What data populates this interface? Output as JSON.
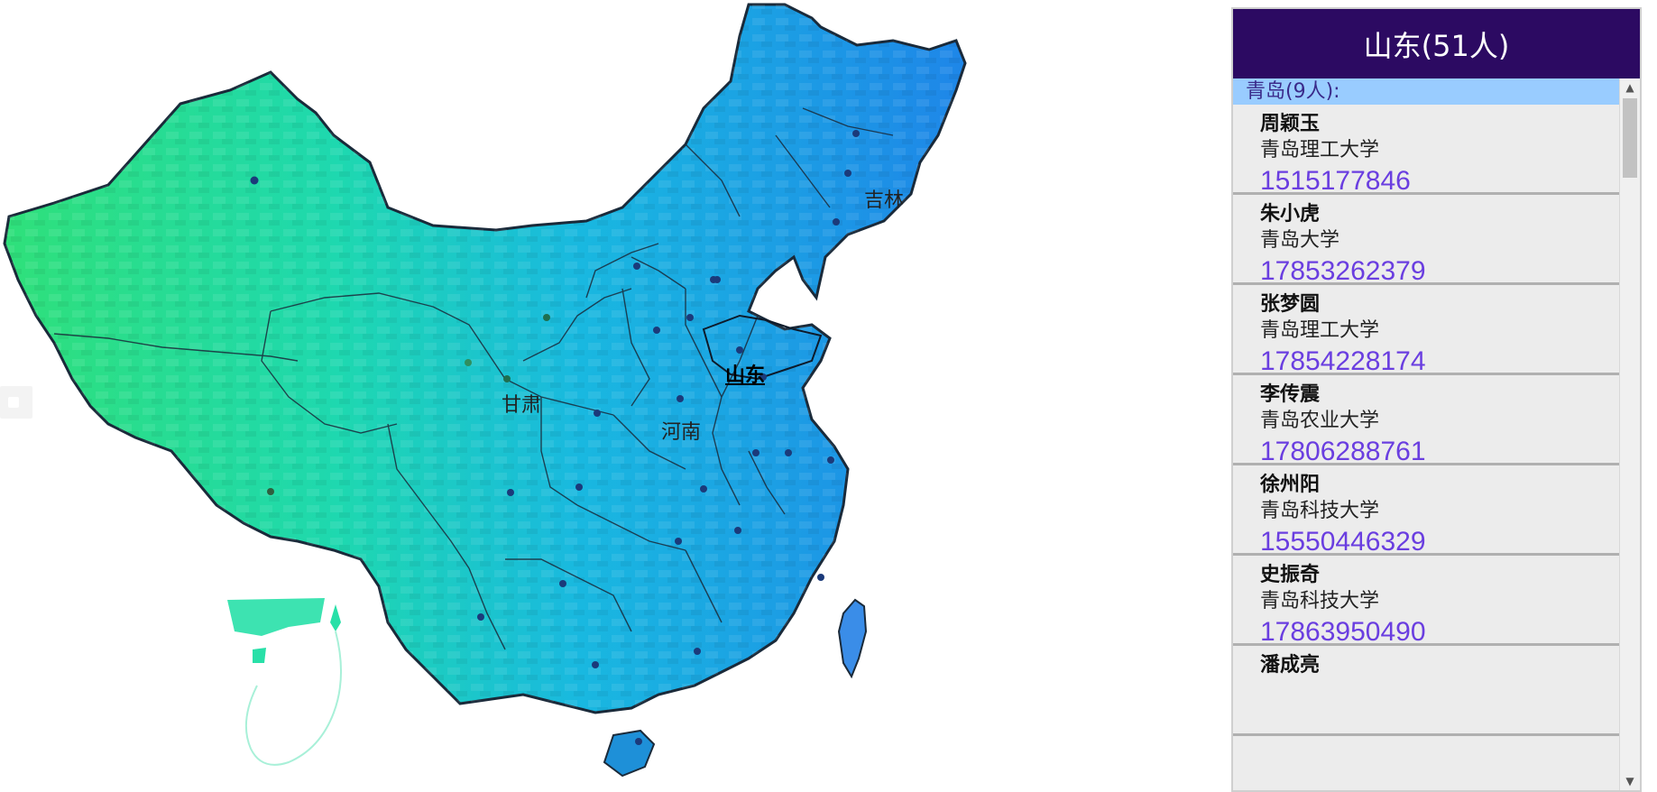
{
  "map": {
    "labels": {
      "jilin": "吉林",
      "shandong": "山东",
      "gansu": "甘肃",
      "henan": "河南"
    },
    "selected_province": "山东",
    "colors": {
      "west": "#2fd88a",
      "east": "#1e8fe0",
      "border": "#1a2a3a",
      "city_dot": "#1b3a7a"
    }
  },
  "panel": {
    "title": "山东(51人)",
    "city_header": "青岛(9人):",
    "people": [
      {
        "name": "周颖玉",
        "school": "青岛理工大学",
        "phone": "1515177846"
      },
      {
        "name": "朱小虎",
        "school": "青岛大学",
        "phone": "17853262379"
      },
      {
        "name": "张梦圆",
        "school": "青岛理工大学",
        "phone": "17854228174"
      },
      {
        "name": "李传震",
        "school": "青岛农业大学",
        "phone": "17806288761"
      },
      {
        "name": "徐州阳",
        "school": "青岛科技大学",
        "phone": "15550446329"
      },
      {
        "name": "史振奇",
        "school": "青岛科技大学",
        "phone": "17863950490"
      },
      {
        "name": "潘成亮",
        "school": "",
        "phone": ""
      }
    ],
    "colors": {
      "header_bg": "#2c0a62",
      "city_bg": "#99ccff",
      "phone": "#6a3ee0"
    }
  },
  "icons": {
    "scroll_up": "triangle-up",
    "scroll_down": "triangle-down",
    "side_tab": "square"
  }
}
